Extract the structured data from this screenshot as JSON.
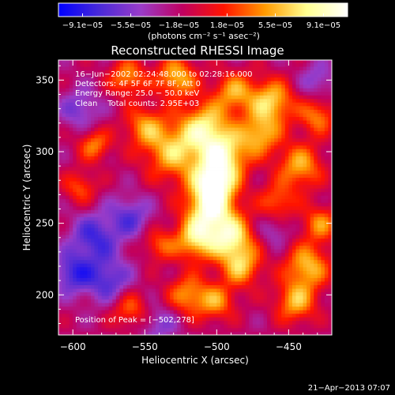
{
  "chart_data": {
    "type": "heatmap",
    "title": "Reconstructed RHESSI Image",
    "xlabel": "Heliocentric X (arcsec)",
    "ylabel": "Heliocentric Y (arcsec)",
    "xlim": [
      -610,
      -420
    ],
    "ylim": [
      172,
      364
    ],
    "x_ticks": [
      -600,
      -550,
      -500,
      -450
    ],
    "y_ticks": [
      200,
      250,
      300,
      350
    ],
    "x_tick_labels": [
      "−600",
      "−550",
      "−500",
      "−450"
    ],
    "y_tick_labels": [
      "200",
      "250",
      "300",
      "350"
    ],
    "colorbar": {
      "label": "(photons cm⁻² s⁻¹ asec⁻²)",
      "range": [
        -9.1e-05,
        9.1e-05
      ],
      "tick_labels": [
        "−9.1e−05",
        "−5.5e−05",
        "−1.8e−05",
        "1.8e−05",
        "5.5e−05",
        "9.1e−05"
      ],
      "colors": [
        "#0000ff",
        "#4a2ad8",
        "#9a3cc8",
        "#c00060",
        "#ff1400",
        "#ff9a00",
        "#ffff90",
        "#ffffff"
      ]
    },
    "info": {
      "time": "16−Jun−2002 02:24:48.000 to 02:28:16.000",
      "detectors": "Detectors: 4F 5F 6F 7F 8F, Att 0",
      "energy": "Energy Range: 25.0 − 50.0 keV",
      "clean": "Clean    Total counts: 2.95E+03",
      "peak": "Position of Peak = [−502,278]"
    },
    "blobs": [
      {
        "x": -530,
        "y": 300,
        "v": 6.5e-05,
        "s": 14
      },
      {
        "x": -508,
        "y": 318,
        "v": 7e-05,
        "s": 12
      },
      {
        "x": -495,
        "y": 298,
        "v": 7.5e-05,
        "s": 12
      },
      {
        "x": -502,
        "y": 278,
        "v": 9.1e-05,
        "s": 11
      },
      {
        "x": -505,
        "y": 258,
        "v": 8e-05,
        "s": 12
      },
      {
        "x": -515,
        "y": 238,
        "v": 6.5e-05,
        "s": 10
      },
      {
        "x": -490,
        "y": 240,
        "v": 7.5e-05,
        "s": 11
      },
      {
        "x": -483,
        "y": 220,
        "v": 6e-05,
        "s": 10
      },
      {
        "x": -462,
        "y": 335,
        "v": 7e-05,
        "s": 11
      },
      {
        "x": -470,
        "y": 312,
        "v": 6e-05,
        "s": 10
      },
      {
        "x": -488,
        "y": 342,
        "v": 5.5e-05,
        "s": 10
      },
      {
        "x": -528,
        "y": 352,
        "v": 6.5e-05,
        "s": 10
      },
      {
        "x": -562,
        "y": 352,
        "v": 5.5e-05,
        "s": 9
      },
      {
        "x": -550,
        "y": 318,
        "v": 5e-05,
        "s": 10
      },
      {
        "x": -442,
        "y": 290,
        "v": 6e-05,
        "s": 11
      },
      {
        "x": -430,
        "y": 325,
        "v": 5e-05,
        "s": 9
      },
      {
        "x": -437,
        "y": 220,
        "v": 6.5e-05,
        "s": 11
      },
      {
        "x": -445,
        "y": 195,
        "v": 6e-05,
        "s": 10
      },
      {
        "x": -428,
        "y": 250,
        "v": 5e-05,
        "s": 9
      },
      {
        "x": -458,
        "y": 265,
        "v": 4.5e-05,
        "s": 9
      },
      {
        "x": -520,
        "y": 200,
        "v": 5.5e-05,
        "s": 10
      },
      {
        "x": -500,
        "y": 195,
        "v": 5e-05,
        "s": 9
      },
      {
        "x": -560,
        "y": 190,
        "v": 4.5e-05,
        "s": 9
      },
      {
        "x": -585,
        "y": 305,
        "v": 5e-05,
        "s": 8
      },
      {
        "x": -595,
        "y": 275,
        "v": 4e-05,
        "s": 8
      },
      {
        "x": -540,
        "y": 235,
        "v": 4e-05,
        "s": 8
      },
      {
        "x": -585,
        "y": 240,
        "v": -5e-05,
        "s": 12
      },
      {
        "x": -575,
        "y": 210,
        "v": -4.5e-05,
        "s": 11
      },
      {
        "x": -600,
        "y": 215,
        "v": -5e-05,
        "s": 10
      },
      {
        "x": -560,
        "y": 255,
        "v": -4e-05,
        "s": 10
      },
      {
        "x": -595,
        "y": 330,
        "v": -3.5e-05,
        "s": 10
      },
      {
        "x": -430,
        "y": 350,
        "v": -3e-05,
        "s": 9
      },
      {
        "x": -540,
        "y": 180,
        "v": -3e-05,
        "s": 10
      },
      {
        "x": -460,
        "y": 245,
        "v": -2.5e-05,
        "s": 8
      }
    ]
  },
  "footer": {
    "timestamp": "21−Apr−2013 07:07"
  }
}
